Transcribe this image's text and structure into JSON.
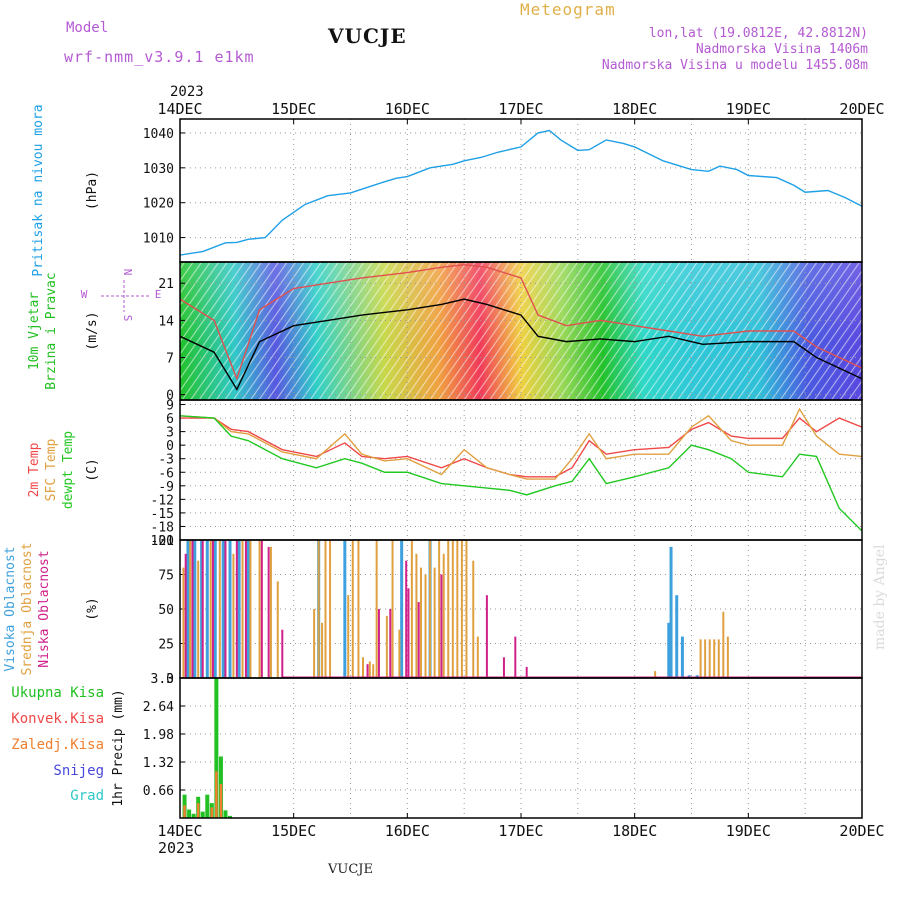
{
  "header": {
    "model_label": "Model",
    "model_name": "wrf-nmm_v3.9.1 e1km",
    "station": "VUCJE",
    "meteogram": "Meteogram",
    "coords": "lon,lat (19.0812E, 42.8812N)",
    "elevation": "Nadmorska Visina 1406m",
    "model_elevation": "Nadmorska Visina u modelu 1455.08m",
    "year_top": "2023",
    "footer_station": "VUCJE",
    "credit": "made by Angel"
  },
  "colors": {
    "pressure": "#1ea0e6",
    "wind_label": "#22c022",
    "wind_dir": "#b45ad2",
    "temp2m": "#f04848",
    "sfc": "#e0a040",
    "dewpt": "#22c822",
    "cloud_high": "#3ea0dc",
    "cloud_mid": "#e0a040",
    "cloud_low": "#d0208a",
    "precip_total": "#22c022",
    "precip_conv": "#f04848",
    "precip_frz": "#f08030",
    "snow": "#4848dc",
    "hail": "#30c8c8",
    "cloud_grey": "#999999",
    "cloud_blue": "#4a64dc",
    "wind_speed_line": "#000000",
    "wind_gust_line": "#e05050"
  },
  "chart_data": [
    {
      "type": "line",
      "ylabel": "Pritisak na nivou mora",
      "unit": "(hPa)",
      "x_ticks": [
        "14DEC",
        "15DEC",
        "16DEC",
        "17DEC",
        "18DEC",
        "19DEC",
        "20DEC"
      ],
      "x_year": "2023",
      "ylim": [
        1003,
        1044
      ],
      "yticks": [
        1010,
        1020,
        1030,
        1040
      ],
      "grid": true,
      "series": [
        {
          "color_key": "pressure",
          "x": [
            0,
            0.2,
            0.4,
            0.5,
            0.6,
            0.75,
            0.9,
            1.1,
            1.3,
            1.5,
            1.75,
            1.9,
            2.0,
            2.2,
            2.4,
            2.5,
            2.65,
            2.8,
            3.0,
            3.15,
            3.25,
            3.35,
            3.5,
            3.6,
            3.75,
            3.9,
            4.0,
            4.25,
            4.5,
            4.65,
            4.75,
            4.9,
            5.0,
            5.25,
            5.4,
            5.5,
            5.7,
            5.85,
            6.0
          ],
          "y": [
            1005,
            1006,
            1008.5,
            1008.6,
            1009.5,
            1010,
            1015,
            1019.5,
            1022,
            1022.8,
            1025.5,
            1027,
            1027.5,
            1030,
            1031,
            1032,
            1033,
            1034.5,
            1036,
            1040,
            1040.7,
            1038,
            1035,
            1035.2,
            1038,
            1037,
            1036,
            1032,
            1029.5,
            1029,
            1030.5,
            1029.5,
            1027.8,
            1027.2,
            1025,
            1023,
            1023.5,
            1021.5,
            1019
          ]
        }
      ]
    },
    {
      "type": "line",
      "ylabel": "10m Vjetar Brzina i Pravac",
      "unit": "(m/s)",
      "direction_labels": [
        "N",
        "E",
        "S",
        "W"
      ],
      "ylim": [
        -1,
        25
      ],
      "yticks": [
        0,
        7,
        14,
        21
      ],
      "grid": true,
      "series": [
        {
          "name": "speed",
          "color_key": "wind_speed_line",
          "x": [
            0,
            0.3,
            0.5,
            0.7,
            1.0,
            1.3,
            1.6,
            2.0,
            2.3,
            2.5,
            2.7,
            3.0,
            3.15,
            3.4,
            3.7,
            4.0,
            4.3,
            4.6,
            5.0,
            5.4,
            5.6,
            6.0
          ],
          "y": [
            11,
            8,
            1,
            10,
            13,
            14,
            15,
            16,
            17,
            18,
            17,
            15,
            11,
            10,
            10.5,
            10,
            11,
            9.5,
            10,
            10,
            7,
            3
          ]
        },
        {
          "name": "gust",
          "color_key": "wind_gust_line",
          "x": [
            0,
            0.3,
            0.5,
            0.7,
            1.0,
            1.3,
            1.6,
            2.0,
            2.3,
            2.5,
            2.7,
            3.0,
            3.15,
            3.4,
            3.7,
            4.0,
            4.3,
            4.6,
            5.0,
            5.4,
            5.6,
            6.0
          ],
          "y": [
            18,
            14,
            3,
            16,
            20,
            21,
            22,
            23,
            24,
            24.5,
            24,
            22,
            15,
            13,
            14,
            13,
            12,
            11,
            12,
            12,
            9,
            5
          ]
        }
      ]
    },
    {
      "type": "line",
      "ylabel_lines": [
        "2m Temp",
        "SFC Temp",
        "dewpt Temp"
      ],
      "unit": "(C)",
      "ylim": [
        -21,
        10
      ],
      "yticks": [
        9,
        6,
        3,
        0,
        -3,
        -6,
        -9,
        -12,
        -15,
        -18,
        -21
      ],
      "grid": true,
      "series": [
        {
          "name": "2m Temp",
          "color_key": "temp2m",
          "x": [
            0,
            0.3,
            0.45,
            0.6,
            0.9,
            1.2,
            1.45,
            1.6,
            1.8,
            2.0,
            2.3,
            2.5,
            2.7,
            2.9,
            3.05,
            3.3,
            3.45,
            3.6,
            3.75,
            4.0,
            4.3,
            4.5,
            4.65,
            4.85,
            5.0,
            5.3,
            5.45,
            5.6,
            5.8,
            6.0
          ],
          "y": [
            6,
            6,
            3.5,
            3,
            -1,
            -2.5,
            0.5,
            -2.5,
            -3,
            -2.5,
            -5,
            -3,
            -5,
            -6.5,
            -7,
            -7,
            -5,
            1,
            -2,
            -1,
            -0.5,
            3.5,
            5,
            2,
            1.5,
            1.5,
            6,
            3,
            6,
            4
          ]
        },
        {
          "name": "SFC Temp",
          "color_key": "sfc",
          "x": [
            0,
            0.3,
            0.45,
            0.6,
            0.9,
            1.2,
            1.45,
            1.6,
            1.8,
            2.0,
            2.3,
            2.5,
            2.7,
            2.9,
            3.05,
            3.3,
            3.45,
            3.6,
            3.75,
            4.0,
            4.3,
            4.5,
            4.65,
            4.85,
            5.0,
            5.3,
            5.45,
            5.6,
            5.8,
            6.0
          ],
          "y": [
            6.5,
            6,
            3,
            2.5,
            -1.5,
            -3,
            2.5,
            -2,
            -3.5,
            -3,
            -6.5,
            -1,
            -5,
            -6.5,
            -7.5,
            -7.5,
            -3,
            2.5,
            -3,
            -2,
            -2,
            4,
            6.5,
            1,
            0,
            0,
            8,
            2,
            -2,
            -2.5
          ]
        },
        {
          "name": "dewpt Temp",
          "color_key": "dewpt",
          "x": [
            0,
            0.3,
            0.45,
            0.6,
            0.9,
            1.2,
            1.45,
            1.6,
            1.8,
            2.0,
            2.3,
            2.5,
            2.7,
            2.9,
            3.05,
            3.3,
            3.45,
            3.6,
            3.75,
            4.0,
            4.3,
            4.5,
            4.65,
            4.85,
            5.0,
            5.3,
            5.45,
            5.6,
            5.8,
            6.0
          ],
          "y": [
            6.5,
            6,
            2,
            1,
            -3,
            -5,
            -3,
            -4,
            -6,
            -6,
            -8.5,
            -9,
            -9.5,
            -10,
            -11,
            -9,
            -8,
            -3,
            -8.5,
            -7,
            -5,
            0,
            -1,
            -3,
            -6,
            -7,
            -2,
            -2.5,
            -14,
            -19
          ]
        }
      ]
    },
    {
      "type": "bar",
      "ylabel_lines": [
        "Visoka Oblacnost",
        "Srednja Oblacnost",
        "Niska Oblacnost"
      ],
      "unit": "(%)",
      "ylim": [
        0,
        100
      ],
      "yticks": [
        0,
        25,
        50,
        75,
        100
      ],
      "grid": true,
      "series": [
        {
          "name": "Visoka Oblacnost",
          "color_key": "cloud_high",
          "x": [
            0.07,
            0.13,
            0.19,
            0.24,
            0.31,
            0.38,
            0.44,
            0.52,
            0.6,
            1.22,
            1.45,
            1.95,
            2.2,
            4.3,
            4.32,
            4.37,
            4.42,
            4.48,
            4.55
          ],
          "values": [
            100,
            100,
            100,
            100,
            100,
            100,
            100,
            100,
            100,
            100,
            100,
            100,
            100,
            40,
            95,
            60,
            30,
            2,
            2
          ]
        },
        {
          "name": "Srednja Oblacnost",
          "color_key": "cloud_mid",
          "x": [
            0.03,
            0.09,
            0.16,
            0.27,
            0.35,
            0.47,
            0.55,
            0.62,
            0.7,
            0.8,
            0.86,
            1.18,
            1.22,
            1.25,
            1.28,
            1.32,
            1.48,
            1.52,
            1.57,
            1.61,
            1.67,
            1.7,
            1.73,
            1.82,
            1.87,
            1.93,
            2.04,
            2.08,
            2.12,
            2.16,
            2.2,
            2.24,
            2.28,
            2.32,
            2.36,
            2.4,
            2.44,
            2.48,
            2.52,
            2.58,
            2.62,
            4.18,
            4.58,
            4.62,
            4.66,
            4.7,
            4.74,
            4.78,
            4.82
          ],
          "values": [
            80,
            100,
            85,
            100,
            100,
            90,
            100,
            100,
            100,
            95,
            70,
            50,
            100,
            40,
            100,
            100,
            60,
            100,
            100,
            15,
            12,
            10,
            100,
            45,
            100,
            35,
            100,
            90,
            80,
            75,
            100,
            80,
            100,
            90,
            100,
            100,
            100,
            100,
            100,
            85,
            30,
            5,
            28,
            28,
            28,
            28,
            28,
            48,
            30
          ]
        },
        {
          "name": "Niska Oblacnost",
          "color_key": "cloud_low",
          "x": [
            0.05,
            0.11,
            0.2,
            0.29,
            0.4,
            0.5,
            0.58,
            0.72,
            0.78,
            0.9,
            1.65,
            1.75,
            1.85,
            1.99,
            2.01,
            2.1,
            2.3,
            2.7,
            2.85,
            2.95,
            3.05
          ],
          "values": [
            90,
            100,
            100,
            100,
            100,
            100,
            100,
            100,
            95,
            35,
            10,
            50,
            50,
            85,
            65,
            55,
            75,
            60,
            15,
            30,
            8
          ]
        }
      ]
    },
    {
      "type": "bar",
      "labels": [
        "Ukupna Kisa",
        "Konvek.Kisa",
        "Zaledj.Kisa",
        "Snijeg",
        "Grad"
      ],
      "ylabel": "1hr Precip (mm)",
      "ylim": [
        0,
        3.3
      ],
      "yticks": [
        0.66,
        1.32,
        1.98,
        2.64,
        3.3
      ],
      "yticklabels": [
        "0.66",
        "1.32",
        "1.98",
        "2.64",
        "3.3"
      ],
      "grid": true,
      "series": [
        {
          "name": "Ukupna Kisa",
          "color_key": "precip_total",
          "x": [
            0.04,
            0.08,
            0.12,
            0.16,
            0.2,
            0.24,
            0.28,
            0.32,
            0.36,
            0.4,
            0.44
          ],
          "values": [
            0.55,
            0.2,
            0.1,
            0.5,
            0.15,
            0.55,
            0.35,
            3.3,
            1.45,
            0.18,
            0.05
          ]
        },
        {
          "name": "Zaledj.Kisa",
          "color_key": "precip_frz",
          "x": [
            0.04,
            0.16,
            0.28,
            0.32,
            0.36
          ],
          "values": [
            0.3,
            0.35,
            0.25,
            1.1,
            0.8
          ]
        }
      ]
    }
  ]
}
